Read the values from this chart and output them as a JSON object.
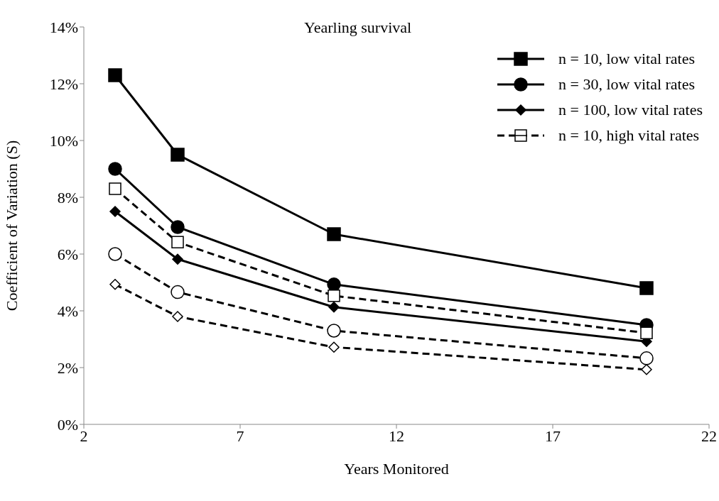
{
  "chart_data": {
    "type": "line",
    "title": "Yearling survival",
    "xlabel": "Years Monitored",
    "ylabel": "Coefficient of Variation (S)",
    "x": [
      3,
      5,
      10,
      20
    ],
    "series": [
      {
        "name": "n = 10, low vital rates",
        "color": "#000000",
        "marker": "square",
        "line_style": "solid",
        "values": [
          12.3,
          9.5,
          6.7,
          4.8
        ]
      },
      {
        "name": "n = 30, low vital rates",
        "color": "#000000",
        "marker": "circle",
        "line_style": "solid",
        "values": [
          9.0,
          6.95,
          4.93,
          3.5
        ]
      },
      {
        "name": "n = 100, low vital rates",
        "color": "#000000",
        "marker": "diamond",
        "line_style": "solid",
        "values": [
          7.5,
          5.82,
          4.13,
          2.92
        ]
      },
      {
        "name": "n = 10, high vital rates",
        "color": "#000000",
        "marker": "square",
        "line_style": "dashed",
        "values": [
          8.3,
          6.42,
          4.53,
          3.22
        ]
      },
      {
        "color": "#000000",
        "marker": "circle",
        "line_style": "dashed",
        "values": [
          6.0,
          4.66,
          3.3,
          2.33
        ]
      },
      {
        "color": "#000000",
        "marker": "diamond",
        "line_style": "dashed",
        "values": [
          4.93,
          3.8,
          2.72,
          1.93
        ]
      }
    ],
    "xlim": [
      2,
      22
    ],
    "xticks": [
      2,
      7,
      12,
      17,
      22
    ],
    "ylim": [
      0,
      14
    ],
    "yticks": [
      {
        "value": 0,
        "label": "0%"
      },
      {
        "value": 2,
        "label": "2%"
      },
      {
        "value": 4,
        "label": "4%"
      },
      {
        "value": 6,
        "label": "6%"
      },
      {
        "value": 8,
        "label": "8%"
      },
      {
        "value": 10,
        "label": "10%"
      },
      {
        "value": 12,
        "label": "12%"
      },
      {
        "value": 14,
        "label": "14%"
      }
    ],
    "grid": false,
    "legend": "top right"
  }
}
